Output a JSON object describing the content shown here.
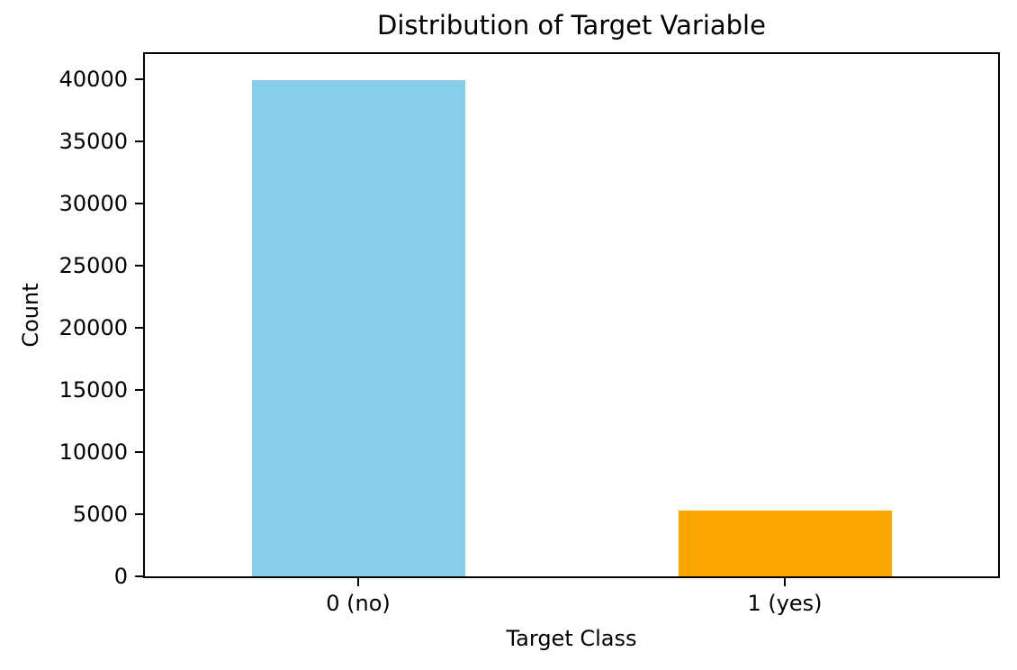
{
  "figure": {
    "title": "Distribution of Target Variable",
    "xlabel": "Target Class",
    "ylabel": "Count"
  },
  "chart_data": {
    "type": "bar",
    "title": "Distribution of Target Variable",
    "xlabel": "Target Class",
    "ylabel": "Count",
    "categories": [
      "0 (no)",
      "1 (yes)"
    ],
    "values": [
      39922,
      5289
    ],
    "bar_colors": [
      "#87ceeb",
      "#ffa500"
    ],
    "bar_width_fraction": 0.25,
    "ylim": [
      0,
      42050
    ],
    "yticks": [
      0,
      5000,
      10000,
      15000,
      20000,
      25000,
      30000,
      35000,
      40000
    ],
    "grid": false,
    "legend": "none",
    "axes_color": "#000000",
    "background_color": "#ffffff"
  }
}
